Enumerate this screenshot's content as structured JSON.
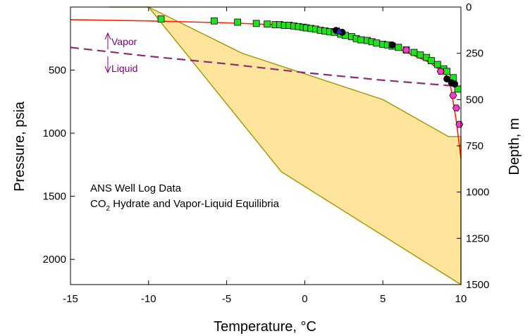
{
  "chart_data": {
    "type": "scatter",
    "title": "",
    "xlabel": "Temperature, °C",
    "ylabel_left": "Pressure, psia",
    "ylabel_right": "Depth, m",
    "xlim": [
      -15,
      10
    ],
    "ylim_left": [
      0,
      2200
    ],
    "ylim_right": [
      0,
      1500
    ],
    "y_inverted": true,
    "x_ticks": [
      -15,
      -10,
      -5,
      0,
      5,
      10
    ],
    "y_left_ticks": [
      500,
      1000,
      1500,
      2000
    ],
    "y_right_ticks": [
      0,
      250,
      500,
      750,
      1000,
      1250,
      1500
    ],
    "grid": false,
    "annotations": {
      "line1": "ANS Well Log Data",
      "line2_prefix": "CO",
      "line2_sub": "2",
      "line2_suffix": " Hydrate and Vapor-Liquid Equilibria",
      "vapor": "Vapor",
      "liquid": "Liquid"
    },
    "colors": {
      "region_fill": "#ffe49c",
      "region_edge": "#a59a14",
      "hydrate_curve": "#ff2200",
      "vle_curve": "#8a2d72",
      "square_marker": "#22e11d",
      "circle_marker": "#000000",
      "hexagon_marker": "#ff3ac6",
      "triangle_marker": "#2c2cc8"
    },
    "well_log_region": {
      "upper_edge": [
        [
          -12.5,
          0
        ],
        [
          -10,
          0
        ],
        [
          -4,
          250
        ],
        [
          5,
          500
        ],
        [
          9.2,
          700
        ],
        [
          10,
          700
        ]
      ],
      "lower_edge": [
        [
          -10,
          0
        ],
        [
          -1.5,
          890
        ],
        [
          10,
          1530
        ]
      ]
    },
    "hydrate_curve": [
      [
        -15,
        100
      ],
      [
        -10,
        110
      ],
      [
        -5,
        125
      ],
      [
        -2,
        140
      ],
      [
        0,
        160
      ],
      [
        2,
        200
      ],
      [
        4,
        260
      ],
      [
        6,
        330
      ],
      [
        8,
        440
      ],
      [
        9,
        530
      ],
      [
        9.3,
        600
      ],
      [
        9.7,
        900
      ],
      [
        10,
        1200
      ]
    ],
    "vle_curve": [
      [
        -15,
        320
      ],
      [
        -10,
        390
      ],
      [
        -5,
        450
      ],
      [
        0,
        520
      ],
      [
        5,
        580
      ],
      [
        10,
        630
      ]
    ],
    "series": [
      {
        "marker": "square",
        "points": [
          [
            -9.2,
            95
          ],
          [
            -5.8,
            110
          ],
          [
            -4.3,
            120
          ],
          [
            -3.1,
            130
          ],
          [
            -2.4,
            135
          ],
          [
            -1.9,
            140
          ],
          [
            -1.6,
            140
          ],
          [
            -1.3,
            145
          ],
          [
            -1.0,
            145
          ],
          [
            -0.7,
            150
          ],
          [
            -0.4,
            155
          ],
          [
            -0.1,
            160
          ],
          [
            0.1,
            165
          ],
          [
            0.4,
            170
          ],
          [
            0.7,
            175
          ],
          [
            1.0,
            185
          ],
          [
            1.3,
            190
          ],
          [
            1.6,
            195
          ],
          [
            1.9,
            200
          ],
          [
            2.3,
            215
          ],
          [
            2.6,
            225
          ],
          [
            3.0,
            235
          ],
          [
            3.3,
            250
          ],
          [
            3.6,
            260
          ],
          [
            4.0,
            265
          ],
          [
            4.3,
            275
          ],
          [
            4.6,
            285
          ],
          [
            5.0,
            295
          ],
          [
            5.3,
            300
          ],
          [
            5.6,
            310
          ],
          [
            6.0,
            320
          ],
          [
            6.5,
            340
          ],
          [
            7.0,
            360
          ],
          [
            7.4,
            380
          ],
          [
            7.8,
            400
          ],
          [
            8.1,
            425
          ],
          [
            8.5,
            455
          ],
          [
            8.9,
            490
          ],
          [
            9.1,
            510
          ],
          [
            9.5,
            560
          ],
          [
            9.8,
            650
          ]
        ]
      },
      {
        "marker": "circle",
        "points": [
          [
            2.0,
            185
          ],
          [
            2.4,
            200
          ],
          [
            5.6,
            300
          ],
          [
            9.1,
            570
          ],
          [
            9.4,
            600
          ],
          [
            9.6,
            610
          ]
        ]
      },
      {
        "marker": "triangle",
        "points": [
          [
            2.2,
            190
          ]
        ]
      },
      {
        "marker": "hexagon",
        "points": [
          [
            6.5,
            340
          ],
          [
            8.7,
            510
          ],
          [
            9.5,
            700
          ],
          [
            9.7,
            800
          ],
          [
            9.9,
            930
          ]
        ]
      }
    ]
  }
}
